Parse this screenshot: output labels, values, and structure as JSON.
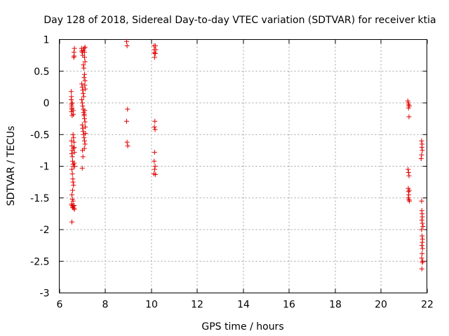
{
  "chart_data": {
    "type": "scatter",
    "title": "Day 128 of 2018, Sidereal Day-to-day VTEC variation (SDTVAR) for receiver ktia",
    "xlabel": "GPS time / hours",
    "ylabel": "SDTVAR / TECUs",
    "xlim": [
      6,
      22
    ],
    "ylim": [
      -3,
      1
    ],
    "xticks": [
      6,
      8,
      10,
      12,
      14,
      16,
      18,
      20,
      22
    ],
    "yticks": [
      1,
      0.5,
      0,
      -0.5,
      -1,
      -1.5,
      -2,
      -2.5,
      -3
    ],
    "xtick_labels": [
      "6",
      "8",
      "10",
      "12",
      "14",
      "16",
      "18",
      "20",
      "22"
    ],
    "ytick_labels": [
      "1",
      "0.5",
      "0",
      "-0.5",
      "-1",
      "-1.5",
      "-2",
      "-2.5",
      "-3"
    ],
    "grid": true,
    "marker": "plus",
    "color": "#e00000",
    "series": [
      {
        "points": [
          [
            6.52,
            0.18
          ],
          [
            6.53,
            0.1
          ],
          [
            6.52,
            0.05
          ],
          [
            6.53,
            -0.02
          ],
          [
            6.54,
            -0.05
          ],
          [
            6.55,
            -0.1
          ],
          [
            6.53,
            -0.14
          ],
          [
            6.56,
            -0.2
          ],
          [
            6.55,
            -0.08
          ],
          [
            6.57,
            0.0
          ],
          [
            6.6,
            -0.12
          ],
          [
            6.61,
            -0.18
          ],
          [
            6.53,
            -0.6
          ],
          [
            6.55,
            -0.68
          ],
          [
            6.56,
            -0.75
          ],
          [
            6.54,
            -0.8
          ],
          [
            6.57,
            -0.85
          ],
          [
            6.58,
            -0.92
          ],
          [
            6.6,
            -0.97
          ],
          [
            6.62,
            -1.0
          ],
          [
            6.55,
            -1.05
          ],
          [
            6.57,
            -1.12
          ],
          [
            6.59,
            -1.2
          ],
          [
            6.6,
            -1.25
          ],
          [
            6.62,
            -1.3
          ],
          [
            6.58,
            -1.38
          ],
          [
            6.55,
            -1.45
          ],
          [
            6.57,
            -1.52
          ],
          [
            6.6,
            -1.55
          ],
          [
            6.53,
            -1.6
          ],
          [
            6.56,
            -1.62
          ],
          [
            6.58,
            -1.65
          ],
          [
            6.6,
            -1.63
          ],
          [
            6.63,
            -1.66
          ],
          [
            6.66,
            -1.68
          ],
          [
            6.65,
            -1.62
          ],
          [
            6.55,
            -1.88
          ],
          [
            6.6,
            -0.5
          ],
          [
            6.62,
            -0.55
          ],
          [
            6.64,
            -0.62
          ],
          [
            6.65,
            -0.7
          ],
          [
            6.62,
            -0.72
          ],
          [
            6.66,
            -0.78
          ],
          [
            6.65,
            -0.95
          ],
          [
            6.67,
            -1.0
          ],
          [
            6.66,
            0.86
          ],
          [
            6.64,
            0.8
          ],
          [
            6.65,
            0.74
          ],
          [
            6.63,
            0.72
          ],
          [
            6.97,
            0.86
          ],
          [
            6.98,
            0.82
          ],
          [
            7.0,
            0.8
          ],
          [
            7.02,
            0.75
          ],
          [
            7.05,
            0.83
          ],
          [
            7.08,
            0.86
          ],
          [
            7.1,
            0.8
          ],
          [
            7.12,
            0.88
          ],
          [
            7.1,
            0.72
          ],
          [
            7.12,
            0.65
          ],
          [
            6.98,
            0.3
          ],
          [
            7.0,
            0.25
          ],
          [
            7.02,
            0.2
          ],
          [
            7.04,
            0.15
          ],
          [
            7.06,
            0.1
          ],
          [
            7.08,
            0.4
          ],
          [
            7.1,
            0.45
          ],
          [
            7.12,
            0.35
          ],
          [
            7.11,
            0.28
          ],
          [
            7.13,
            0.22
          ],
          [
            6.98,
            0.05
          ],
          [
            7.0,
            0.0
          ],
          [
            7.02,
            -0.05
          ],
          [
            7.04,
            -0.1
          ],
          [
            7.06,
            -0.15
          ],
          [
            7.08,
            -0.2
          ],
          [
            7.1,
            -0.25
          ],
          [
            7.12,
            -0.3
          ],
          [
            7.0,
            -0.35
          ],
          [
            7.02,
            -0.4
          ],
          [
            7.04,
            -0.45
          ],
          [
            7.06,
            -0.5
          ],
          [
            7.08,
            -0.55
          ],
          [
            7.1,
            -0.6
          ],
          [
            7.12,
            -0.65
          ],
          [
            7.01,
            -0.75
          ],
          [
            7.03,
            -0.85
          ],
          [
            7.0,
            -1.03
          ],
          [
            7.09,
            -0.18
          ],
          [
            7.11,
            -0.12
          ],
          [
            7.13,
            -0.38
          ],
          [
            7.14,
            -0.48
          ],
          [
            7.05,
            0.6
          ],
          [
            7.07,
            0.55
          ],
          [
            7.09,
            -0.72
          ],
          [
            8.93,
            0.97
          ],
          [
            8.95,
            0.9
          ],
          [
            8.97,
            -0.1
          ],
          [
            8.93,
            -0.29
          ],
          [
            8.95,
            -0.62
          ],
          [
            8.98,
            -0.68
          ],
          [
            10.12,
            0.9
          ],
          [
            10.18,
            0.9
          ],
          [
            10.14,
            0.84
          ],
          [
            10.2,
            0.84
          ],
          [
            10.13,
            0.79
          ],
          [
            10.18,
            0.78
          ],
          [
            10.15,
            0.72
          ],
          [
            10.16,
            -0.29
          ],
          [
            10.14,
            -0.38
          ],
          [
            10.17,
            -0.42
          ],
          [
            10.15,
            -0.78
          ],
          [
            10.13,
            -0.92
          ],
          [
            10.17,
            -1.0
          ],
          [
            10.15,
            -1.05
          ],
          [
            10.12,
            -1.12
          ],
          [
            10.19,
            -1.13
          ],
          [
            21.17,
            0.03
          ],
          [
            21.19,
            0.0
          ],
          [
            21.21,
            -0.03
          ],
          [
            21.23,
            -0.05
          ],
          [
            21.2,
            -0.08
          ],
          [
            21.22,
            -0.22
          ],
          [
            21.18,
            -1.05
          ],
          [
            21.2,
            -1.1
          ],
          [
            21.22,
            -1.15
          ],
          [
            21.19,
            -1.35
          ],
          [
            21.2,
            -1.4
          ],
          [
            21.21,
            -1.45
          ],
          [
            21.19,
            -1.5
          ],
          [
            21.22,
            -1.53
          ],
          [
            21.24,
            -1.55
          ],
          [
            21.23,
            -1.38
          ],
          [
            21.77,
            -0.6
          ],
          [
            21.79,
            -0.65
          ],
          [
            21.78,
            -0.7
          ],
          [
            21.8,
            -0.75
          ],
          [
            21.77,
            -0.82
          ],
          [
            21.75,
            -0.88
          ],
          [
            21.77,
            -1.55
          ],
          [
            21.78,
            -1.7
          ],
          [
            21.79,
            -1.75
          ],
          [
            21.8,
            -1.8
          ],
          [
            21.78,
            -1.85
          ],
          [
            21.8,
            -1.9
          ],
          [
            21.77,
            -2.0
          ],
          [
            21.79,
            -2.1
          ],
          [
            21.81,
            -2.15
          ],
          [
            21.8,
            -2.2
          ],
          [
            21.78,
            -2.25
          ],
          [
            21.81,
            -2.3
          ],
          [
            21.79,
            -2.38
          ],
          [
            21.77,
            -2.45
          ],
          [
            21.8,
            -2.52
          ],
          [
            21.82,
            -2.5
          ],
          [
            21.78,
            -2.62
          ],
          [
            21.83,
            -1.95
          ]
        ]
      }
    ]
  }
}
